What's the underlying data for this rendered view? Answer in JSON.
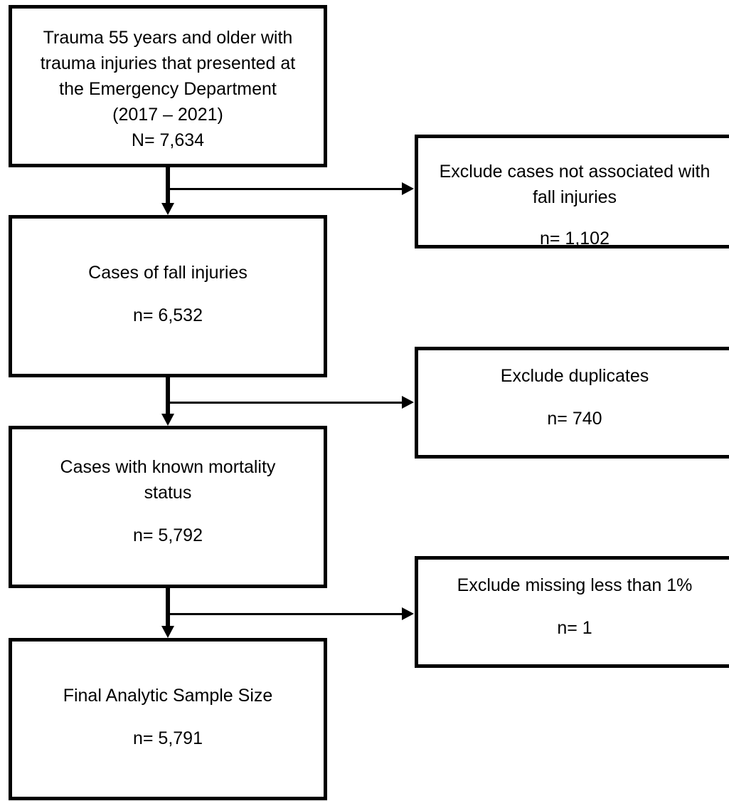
{
  "main_boxes": [
    {
      "lines": [
        "Trauma 55 years and older with",
        "trauma injuries that presented at",
        "the Emergency Department",
        "(2017 – 2021)",
        "N= 7,634"
      ]
    },
    {
      "lines": [
        "Cases of fall injuries"
      ],
      "count": "n= 6,532"
    },
    {
      "lines": [
        "Cases with known mortality",
        "status"
      ],
      "count": "n= 5,792"
    },
    {
      "lines": [
        "Final Analytic Sample Size"
      ],
      "count": "n= 5,791"
    }
  ],
  "exclusion_boxes": [
    {
      "lines": [
        "Exclude cases not associated with",
        "fall injuries"
      ],
      "count": "n= 1,102"
    },
    {
      "lines": [
        "Exclude duplicates"
      ],
      "count": "n= 740"
    },
    {
      "lines": [
        "Exclude missing less than 1%"
      ],
      "count": "n= 1"
    }
  ]
}
